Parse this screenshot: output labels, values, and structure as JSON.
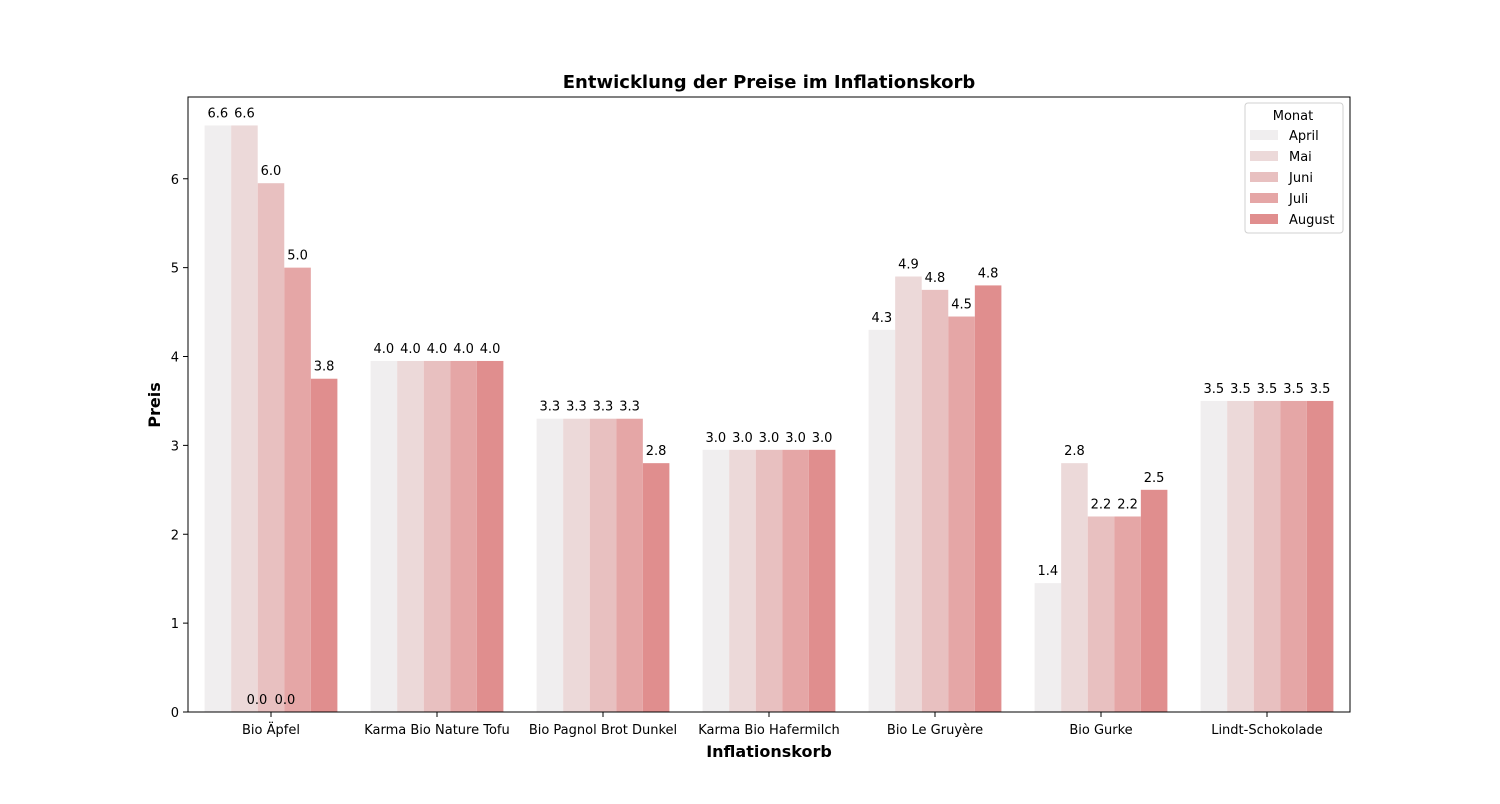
{
  "chart_data": {
    "type": "bar",
    "title": "Entwicklung der Preise im Inflationskorb",
    "xlabel": "Inflationskorb",
    "ylabel": "Preis",
    "ylim": [
      0,
      6.92
    ],
    "yticks": [
      "0",
      "1",
      "2",
      "3",
      "4",
      "5",
      "6"
    ],
    "grid": false,
    "legend": {
      "title": "Monat",
      "placement": "top-right"
    },
    "categories": [
      "Bio Äpfel",
      "Karma Bio Nature Tofu",
      "Bio Pagnol Brot Dunkel",
      "Karma Bio Hafermilch",
      "Bio Le Gruyère",
      "Bio Gurke",
      "Lindt-Schokolade"
    ],
    "series": [
      {
        "name": "April",
        "color": "#f0eeef",
        "values": [
          6.6,
          3.95,
          3.3,
          2.95,
          4.3,
          1.45,
          3.5
        ],
        "labels": [
          "6.6",
          "4.0",
          "3.3",
          "3.0",
          "4.3",
          "1.4",
          "3.5"
        ]
      },
      {
        "name": "Mai",
        "color": "#ecd9d9",
        "values": [
          6.6,
          3.95,
          3.3,
          2.95,
          4.9,
          2.8,
          3.5
        ],
        "labels": [
          "6.6",
          "4.0",
          "3.3",
          "3.0",
          "4.9",
          "2.8",
          "3.5"
        ]
      },
      {
        "name": "Juni",
        "color": "#e8c0c0",
        "values": [
          5.95,
          3.95,
          3.3,
          2.95,
          4.75,
          2.2,
          3.5
        ],
        "labels": [
          "6.0",
          "4.0",
          "3.3",
          "3.0",
          "4.8",
          "2.2",
          "3.5"
        ]
      },
      {
        "name": "Juli",
        "color": "#e5a6a6",
        "values": [
          5.0,
          3.95,
          3.3,
          2.95,
          4.45,
          2.2,
          3.5
        ],
        "labels": [
          "5.0",
          "4.0",
          "3.3",
          "3.0",
          "4.5",
          "2.2",
          "3.5"
        ]
      },
      {
        "name": "August",
        "color": "#e08e8e",
        "values": [
          3.75,
          3.95,
          2.8,
          2.95,
          4.8,
          2.5,
          3.5
        ],
        "labels": [
          "3.8",
          "4.0",
          "2.8",
          "3.0",
          "4.8",
          "2.5",
          "3.5"
        ]
      }
    ],
    "annotations": [
      {
        "text": "0.0",
        "category": "Bio Äpfel",
        "value": 0
      },
      {
        "text": "0.0",
        "category": "Bio Äpfel",
        "value": 0
      }
    ]
  }
}
